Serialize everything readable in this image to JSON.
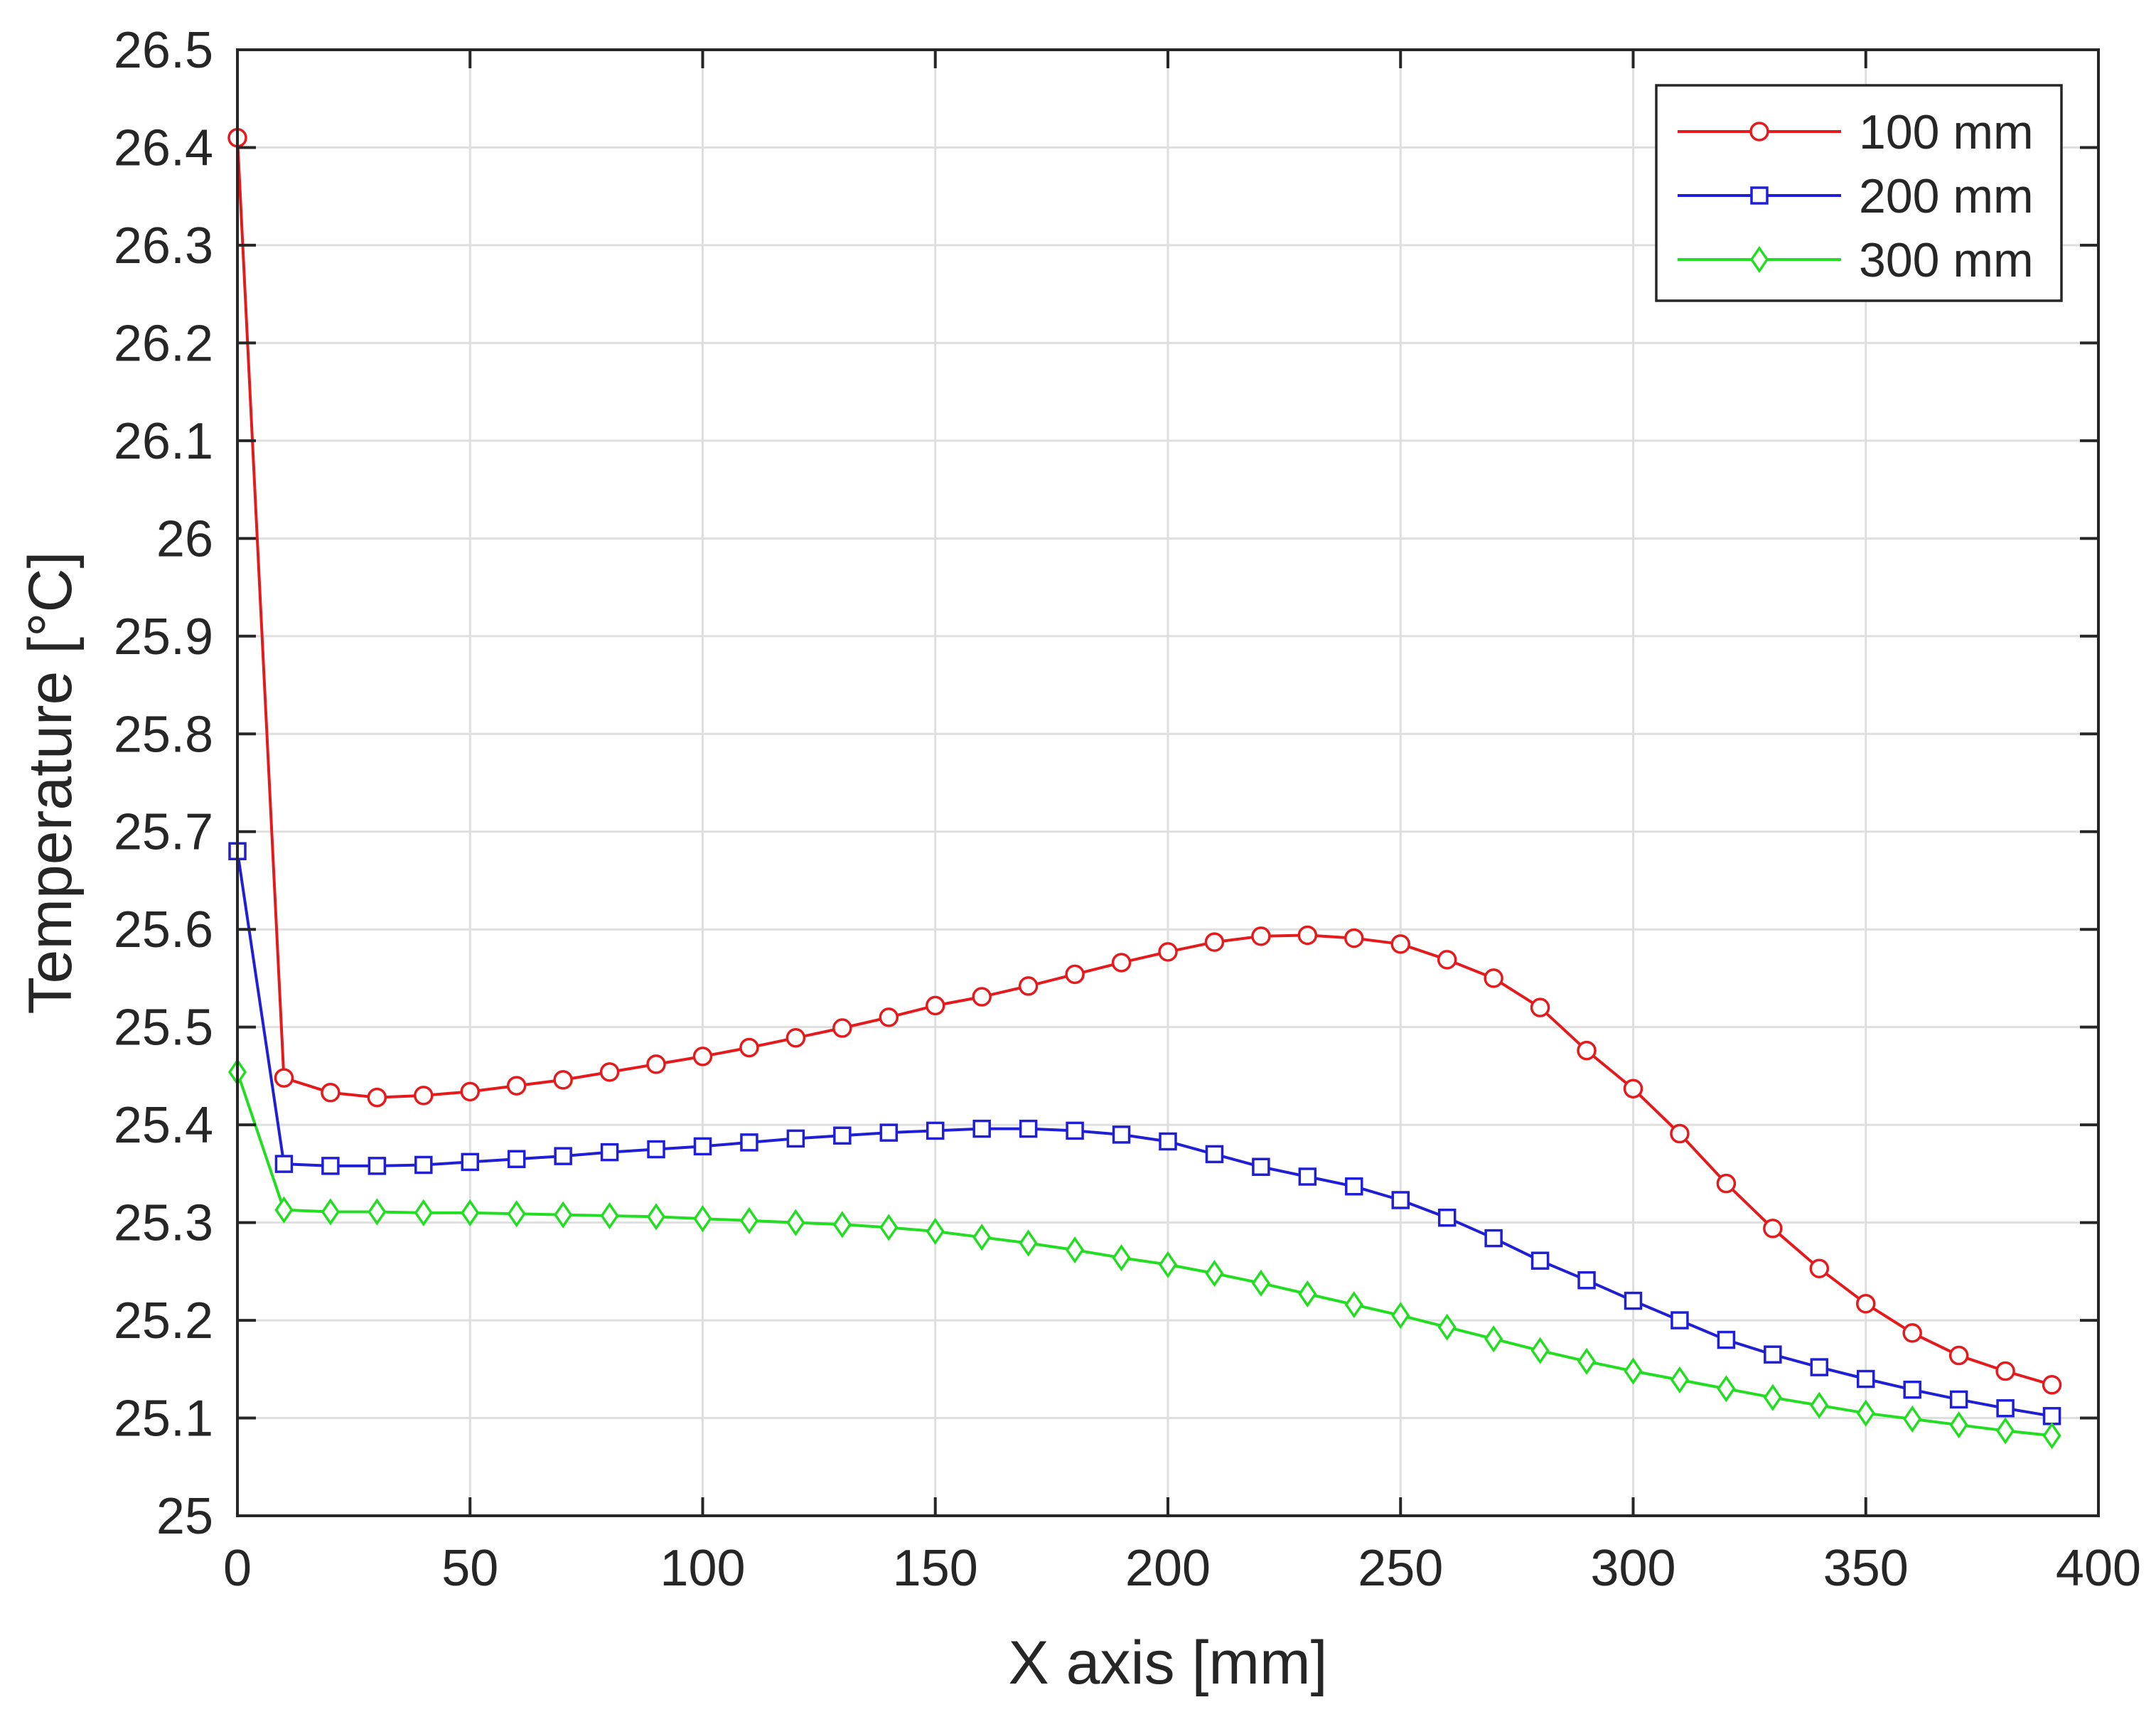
{
  "chart_data": {
    "type": "line",
    "title": "",
    "xlabel": "X axis [mm]",
    "ylabel": "Temperature [°C]",
    "xlim": [
      0,
      400
    ],
    "ylim": [
      25,
      26.5
    ],
    "xticks": [
      0,
      50,
      100,
      150,
      200,
      250,
      300,
      350,
      400
    ],
    "xtick_labels": [
      "0",
      "50",
      "100",
      "150",
      "200",
      "250",
      "300",
      "350",
      "400"
    ],
    "yticks": [
      25,
      25.1,
      25.2,
      25.3,
      25.4,
      25.5,
      25.6,
      25.7,
      25.8,
      25.9,
      26,
      26.1,
      26.2,
      26.3,
      26.4,
      26.5
    ],
    "ytick_labels": [
      "25",
      "25.1",
      "25.2",
      "25.3",
      "25.4",
      "25.5",
      "25.6",
      "25.7",
      "25.8",
      "25.9",
      "26",
      "26.1",
      "26.2",
      "26.3",
      "26.4",
      "26.5"
    ],
    "grid": true,
    "legend_position": "top-right",
    "x": [
      0,
      10,
      20,
      30,
      40,
      50,
      60,
      70,
      80,
      90,
      100,
      110,
      120,
      130,
      140,
      150,
      160,
      170,
      180,
      190,
      200,
      210,
      220,
      230,
      240,
      250,
      260,
      270,
      280,
      290,
      300,
      310,
      320,
      330,
      340,
      350,
      360,
      370,
      380,
      390
    ],
    "series": [
      {
        "name": "100 mm",
        "color": "#e41a1c",
        "marker": "circle",
        "values": [
          26.41,
          25.448,
          25.433,
          25.428,
          25.43,
          25.434,
          25.44,
          25.446,
          25.454,
          25.462,
          25.47,
          25.479,
          25.489,
          25.499,
          25.51,
          25.522,
          25.531,
          25.542,
          25.554,
          25.566,
          25.577,
          25.587,
          25.593,
          25.594,
          25.591,
          25.585,
          25.569,
          25.55,
          25.52,
          25.476,
          25.437,
          25.391,
          25.34,
          25.294,
          25.253,
          25.217,
          25.187,
          25.164,
          25.148,
          25.134
        ]
      },
      {
        "name": "200 mm",
        "color": "#1f1fd6",
        "marker": "square",
        "values": [
          25.68,
          25.36,
          25.358,
          25.358,
          25.359,
          25.362,
          25.365,
          25.368,
          25.372,
          25.375,
          25.378,
          25.382,
          25.386,
          25.389,
          25.392,
          25.394,
          25.396,
          25.396,
          25.394,
          25.39,
          25.383,
          25.37,
          25.357,
          25.347,
          25.337,
          25.323,
          25.305,
          25.284,
          25.261,
          25.241,
          25.22,
          25.2,
          25.18,
          25.165,
          25.152,
          25.14,
          25.129,
          25.119,
          25.11,
          25.102
        ]
      },
      {
        "name": "300 mm",
        "color": "#22dd22",
        "marker": "diamond",
        "values": [
          25.454,
          25.313,
          25.311,
          25.311,
          25.31,
          25.31,
          25.309,
          25.308,
          25.307,
          25.306,
          25.304,
          25.302,
          25.3,
          25.298,
          25.295,
          25.291,
          25.285,
          25.279,
          25.272,
          25.264,
          25.257,
          25.248,
          25.238,
          25.227,
          25.216,
          25.205,
          25.193,
          25.181,
          25.169,
          25.158,
          25.148,
          25.139,
          25.13,
          25.121,
          25.113,
          25.105,
          25.099,
          25.093,
          25.087,
          25.082
        ]
      }
    ]
  }
}
